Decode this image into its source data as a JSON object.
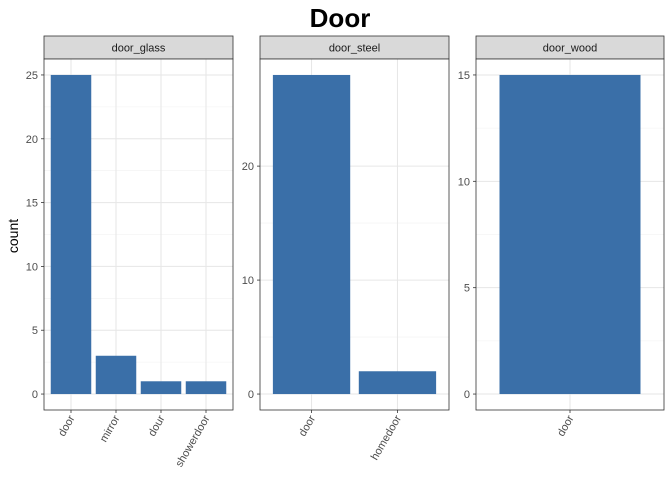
{
  "chart_data": {
    "type": "bar",
    "title": "Door",
    "ylabel": "count",
    "xlabel": "",
    "bar_color": "#3a6fa8",
    "grid": true,
    "panels": [
      {
        "strip": "door_glass",
        "categories": [
          "door",
          "mirror",
          "dour",
          "showerdoor"
        ],
        "values": [
          25,
          3,
          1,
          1
        ],
        "ylim": [
          -1.25,
          26.25
        ],
        "yticks": [
          0,
          5,
          10,
          15,
          20,
          25
        ]
      },
      {
        "strip": "door_steel",
        "categories": [
          "door",
          "homedoor"
        ],
        "values": [
          28,
          2
        ],
        "ylim": [
          -1.4,
          29.4
        ],
        "yticks": [
          0,
          10,
          20
        ]
      },
      {
        "strip": "door_wood",
        "categories": [
          "door"
        ],
        "values": [
          15
        ],
        "ylim": [
          -0.75,
          15.75
        ],
        "yticks": [
          0,
          5,
          10,
          15
        ]
      }
    ]
  }
}
